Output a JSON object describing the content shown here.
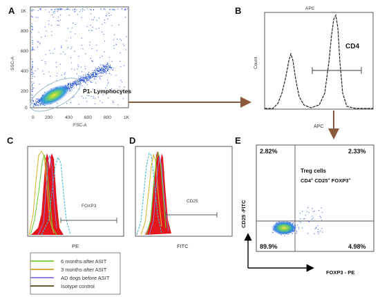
{
  "panels": {
    "A": {
      "letter": "A",
      "y_ticks": [
        "1K",
        "800",
        "600",
        "400",
        "200",
        "0"
      ],
      "x_ticks": [
        "0",
        "200",
        "400",
        "600",
        "800",
        "1K"
      ],
      "y_axis": "SSC-A",
      "x_axis": "FSC-A",
      "gate_label": "P1- Lymphocytes"
    },
    "B": {
      "letter": "B",
      "title": "APC",
      "y_axis": "Count",
      "x_axis": "APC",
      "gate_label": "CD4"
    },
    "C": {
      "letter": "C",
      "x_axis": "PE",
      "gate_label": "FOXP3"
    },
    "D": {
      "letter": "D",
      "x_axis": "FITC",
      "gate_label": "CD25"
    },
    "E": {
      "letter": "E",
      "q_top_left": "2.82%",
      "q_top_right": "2.33%",
      "q_bottom_left": "89.9%",
      "q_bottom_right": "4.98%",
      "treg_title": "Treg cells",
      "y_axis": "CD25 -FITC",
      "x_axis": "FOXP3 - PE"
    }
  },
  "legend": {
    "items": [
      {
        "label": "6 months after ASIT",
        "color": "#7fd04a"
      },
      {
        "label": "3 months after ASIT",
        "color": "#d9a93a"
      },
      {
        "label": "AD dogs before ASIT",
        "color": "#8c7fe6"
      },
      {
        "label": "Isotype control",
        "color": "#6a5a2a"
      }
    ]
  },
  "colors": {
    "arrow": "#8b5a3c",
    "fill_red": "#e4161b",
    "cyan": "#3fb9d8",
    "green": "#6fcf3c",
    "yellow": "#d8b636"
  }
}
